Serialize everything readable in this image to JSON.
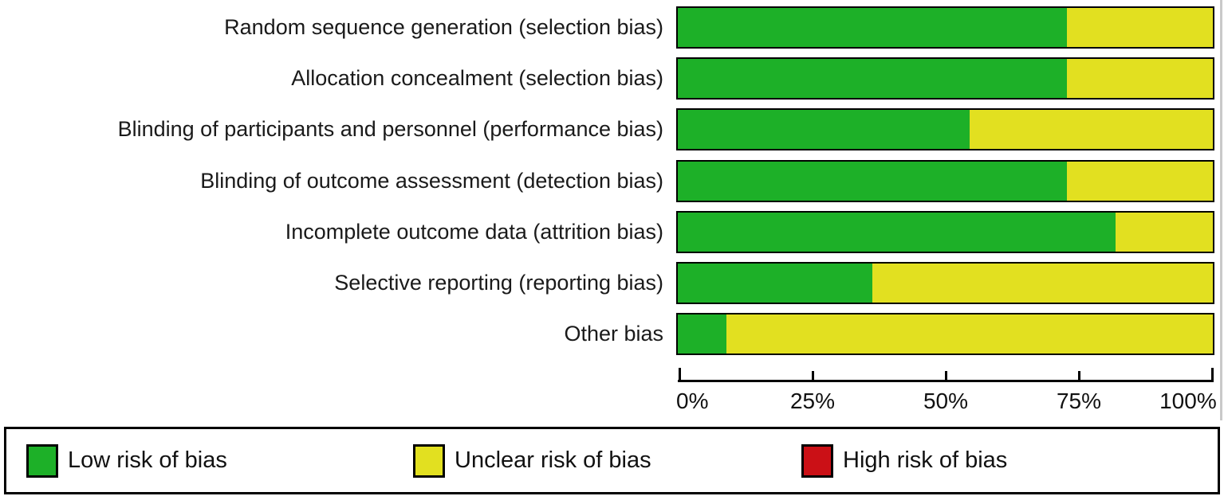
{
  "chart_data": {
    "type": "bar",
    "orientation": "horizontal-stacked",
    "title": "",
    "xlabel": "",
    "ylabel": "",
    "grid": false,
    "categories": [
      "Random sequence generation (selection bias)",
      "Allocation concealment (selection bias)",
      "Blinding of participants and personnel (performance bias)",
      "Blinding of outcome assessment (detection bias)",
      "Incomplete outcome data (attrition bias)",
      "Selective reporting (reporting bias)",
      "Other bias"
    ],
    "series": [
      {
        "name": "Low risk of bias",
        "color": "#1db028",
        "values": [
          72.7,
          72.7,
          54.5,
          72.7,
          81.8,
          36.4,
          9.1
        ]
      },
      {
        "name": "Unclear risk of bias",
        "color": "#e2e020",
        "values": [
          27.3,
          27.3,
          45.5,
          27.3,
          18.2,
          63.6,
          90.9
        ]
      },
      {
        "name": "High risk of bias",
        "color": "#cb1016",
        "values": [
          0,
          0,
          0,
          0,
          0,
          0,
          0
        ]
      }
    ],
    "x_axis": {
      "range": [
        0,
        100
      ],
      "tick_values": [
        0,
        25,
        50,
        75,
        100
      ],
      "tick_labels": [
        "0%",
        "25%",
        "50%",
        "75%",
        "100%"
      ]
    },
    "legend": {
      "position": "bottom",
      "entries": [
        {
          "label": "Low risk of bias",
          "color": "#1db028"
        },
        {
          "label": "Unclear risk of bias",
          "color": "#e2e020"
        },
        {
          "label": "High risk of bias",
          "color": "#cb1016"
        }
      ]
    }
  }
}
